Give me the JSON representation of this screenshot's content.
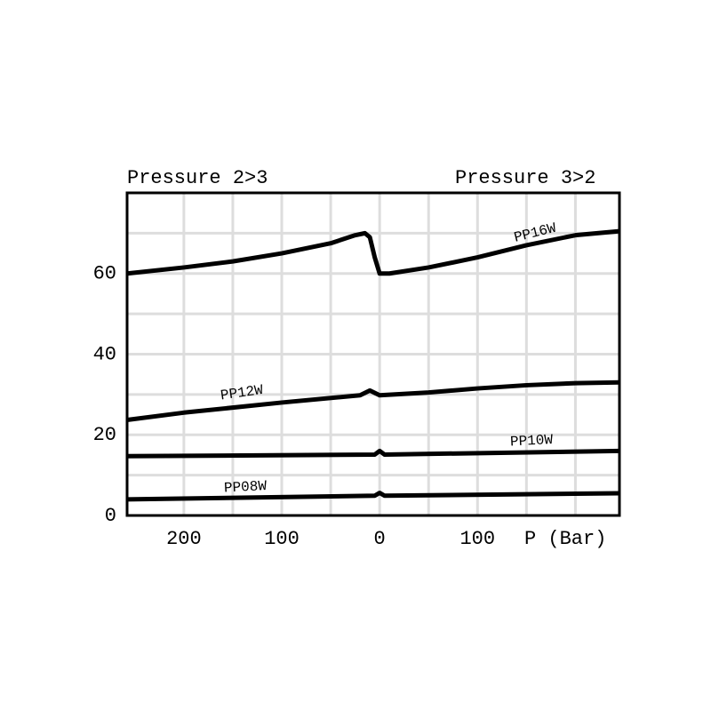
{
  "chart_data": {
    "type": "line",
    "title_left": "Pressure 2>3",
    "title_right": "Pressure 3>2",
    "xlabel": "P (Bar)",
    "xlim": [
      -258,
      245
    ],
    "ylim": [
      0,
      80
    ],
    "xticks": [
      {
        "value": -200,
        "label": "200"
      },
      {
        "value": -100,
        "label": "100"
      },
      0,
      100
    ],
    "yticks": [
      0,
      20,
      40,
      60
    ],
    "x_grid": [
      -200,
      -150,
      -100,
      -50,
      0,
      50,
      100,
      150,
      200
    ],
    "y_grid": [
      10,
      20,
      30,
      40,
      50,
      60,
      70
    ],
    "grid": true,
    "series": [
      {
        "name": "PP16W",
        "color": "#000000",
        "x": [
          -258,
          -200,
          -150,
          -100,
          -50,
          -25,
          -15,
          -10,
          -5,
          0,
          10,
          50,
          100,
          150,
          200,
          245
        ],
        "values": [
          60,
          61.5,
          63,
          65,
          67.5,
          69.5,
          70,
          69,
          64,
          60,
          60,
          61.5,
          64,
          67,
          69.5,
          70.5
        ]
      },
      {
        "name": "PP12W",
        "color": "#000000",
        "x": [
          -258,
          -200,
          -100,
          -20,
          -10,
          0,
          50,
          100,
          150,
          200,
          245
        ],
        "values": [
          23.7,
          25.5,
          28,
          29.8,
          31,
          29.8,
          30.5,
          31.5,
          32.3,
          32.8,
          33
        ]
      },
      {
        "name": "PP10W",
        "color": "#000000",
        "x": [
          -258,
          -5,
          0,
          5,
          245
        ],
        "values": [
          14.7,
          15.1,
          16,
          15.1,
          16
        ]
      },
      {
        "name": "PP08W",
        "color": "#000000",
        "x": [
          -258,
          -5,
          0,
          5,
          245
        ],
        "values": [
          4,
          4.9,
          5.6,
          4.9,
          5.5
        ]
      }
    ]
  }
}
